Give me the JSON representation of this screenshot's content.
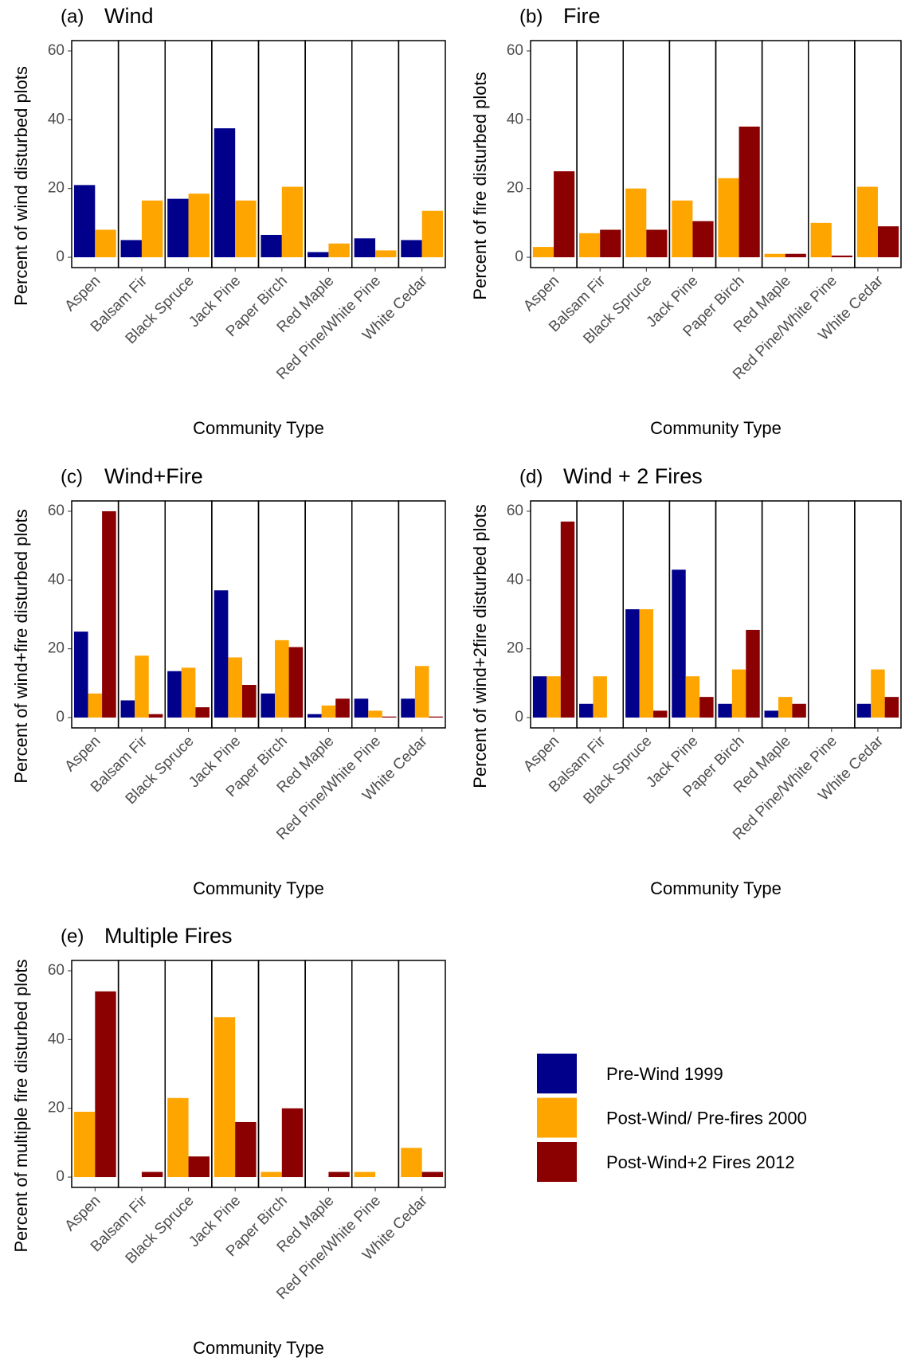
{
  "chart_data": [
    {
      "type": "bar",
      "label": "(a)",
      "title": "Wind",
      "y_label": "Percent of wind disturbed plots",
      "x_label": "Community Type",
      "categories": [
        "Aspen",
        "Balsam Fir",
        "Black Spruce",
        "Jack Pine",
        "Paper Birch",
        "Red Maple",
        "Red Pine/White Pine",
        "White Cedar"
      ],
      "series": [
        {
          "color": "#00008b",
          "values": [
            21,
            5,
            17,
            37.5,
            6.5,
            1.5,
            5.5,
            5
          ]
        },
        {
          "color": "#ffa500",
          "values": [
            8,
            16.5,
            18.5,
            16.5,
            20.5,
            4,
            2,
            13.5
          ]
        }
      ],
      "ylim": [
        -3,
        63
      ],
      "yticks": [
        0,
        20,
        40,
        60
      ]
    },
    {
      "type": "bar",
      "label": "(b)",
      "title": "Fire",
      "y_label": "Percent of fire disturbed plots",
      "x_label": "Community Type",
      "categories": [
        "Aspen",
        "Balsam Fir",
        "Black Spruce",
        "Jack Pine",
        "Paper Birch",
        "Red Maple",
        "Red Pine/White Pine",
        "White Cedar"
      ],
      "series": [
        {
          "color": "#ffa500",
          "values": [
            3,
            7,
            20,
            16.5,
            23,
            1,
            10,
            20.5
          ]
        },
        {
          "color": "#8b0000",
          "values": [
            25,
            8,
            8,
            10.5,
            38,
            1,
            0.5,
            9
          ]
        }
      ],
      "ylim": [
        -3,
        63
      ],
      "yticks": [
        0,
        20,
        40,
        60
      ]
    },
    {
      "type": "bar",
      "label": "(c)",
      "title": "Wind+Fire",
      "y_label": "Percent of wind+fire disturbed plots",
      "x_label": "Community Type",
      "categories": [
        "Aspen",
        "Balsam Fir",
        "Black Spruce",
        "Jack Pine",
        "Paper Birch",
        "Red Maple",
        "Red Pine/White Pine",
        "White Cedar"
      ],
      "series": [
        {
          "name": "Pre-Wind 1999",
          "color": "#00008b",
          "values": [
            25,
            5,
            13.5,
            37,
            7,
            1,
            5.5,
            5.5
          ]
        },
        {
          "name": "Post-Wind/ Pre-fires 2000",
          "color": "#ffa500",
          "values": [
            7,
            18,
            14.5,
            17.5,
            22.5,
            3.5,
            2,
            15
          ]
        },
        {
          "name": "Post-Wind+2 Fires 2012",
          "color": "#8b0000",
          "values": [
            60,
            1,
            3,
            9.5,
            20.5,
            5.5,
            0.3,
            0.3
          ]
        }
      ],
      "ylim": [
        -3,
        63
      ],
      "yticks": [
        0,
        20,
        40,
        60
      ]
    },
    {
      "type": "bar",
      "label": "(d)",
      "title": "Wind + 2 Fires",
      "y_label": "Percent of wind+2fire disturbed plots",
      "x_label": "Community Type",
      "categories": [
        "Aspen",
        "Balsam Fir",
        "Black Spruce",
        "Jack Pine",
        "Paper Birch",
        "Red Maple",
        "Red Pine/White Pine",
        "White Cedar"
      ],
      "series": [
        {
          "color": "#00008b",
          "values": [
            12,
            4,
            31.5,
            43,
            4,
            2,
            0,
            4
          ]
        },
        {
          "color": "#ffa500",
          "values": [
            12,
            12,
            31.5,
            12,
            14,
            6,
            0,
            14
          ]
        },
        {
          "color": "#8b0000",
          "values": [
            57,
            0,
            2,
            6,
            25.5,
            4,
            0,
            6
          ]
        }
      ],
      "ylim": [
        -3,
        63
      ],
      "yticks": [
        0,
        20,
        40,
        60
      ]
    },
    {
      "type": "bar",
      "label": "(e)",
      "title": "Multiple Fires",
      "y_label": "Percent of multiple fire disturbed plots",
      "x_label": "Community Type",
      "categories": [
        "Aspen",
        "Balsam Fir",
        "Black Spruce",
        "Jack Pine",
        "Paper Birch",
        "Red Maple",
        "Red Pine/White Pine",
        "White Cedar"
      ],
      "series": [
        {
          "color": "#ffa500",
          "values": [
            19,
            0,
            23,
            46.5,
            1.5,
            0,
            1.5,
            8.5
          ]
        },
        {
          "color": "#8b0000",
          "values": [
            54,
            1.5,
            6,
            16,
            20,
            1.5,
            0,
            1.5
          ]
        }
      ],
      "ylim": [
        -3,
        63
      ],
      "yticks": [
        0,
        20,
        40,
        60
      ]
    }
  ]
}
